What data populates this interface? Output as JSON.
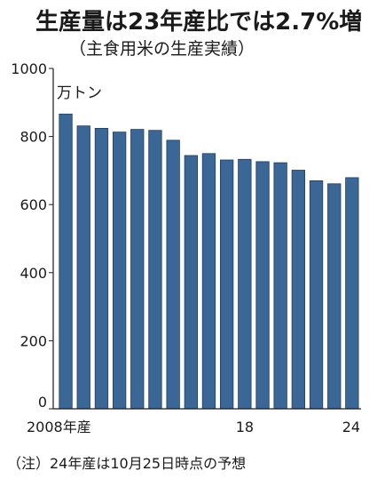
{
  "title": "生産量は23年産比では2.7%増",
  "subtitle": "（主食用米の生産実績）",
  "unit_label": "万トン",
  "note": "（注）24年産は10月25日時点の予想",
  "colors": {
    "bar": "#3a6795",
    "bar_stroke": "#1f3f63",
    "axis": "#1a1a1a"
  },
  "chart_data": {
    "type": "bar",
    "title": "生産量は23年産比では2.7%増",
    "subtitle": "（主食用米の生産実績）",
    "ylabel": "万トン",
    "ylim": [
      0,
      1000
    ],
    "yticks": [
      0,
      200,
      400,
      600,
      800,
      1000
    ],
    "categories": [
      "2008",
      "2009",
      "2010",
      "2011",
      "2012",
      "2013",
      "2014",
      "2015",
      "2016",
      "2017",
      "2018",
      "2019",
      "2020",
      "2021",
      "2022",
      "2023",
      "2024"
    ],
    "x_tick_labels": [
      {
        "category": "2008",
        "label": "2008年産"
      },
      {
        "category": "2018",
        "label": "18"
      },
      {
        "category": "2024",
        "label": "24"
      }
    ],
    "values": [
      866,
      831,
      824,
      813,
      821,
      818,
      789,
      744,
      750,
      731,
      733,
      726,
      723,
      701,
      670,
      661,
      679
    ],
    "grid": false
  }
}
